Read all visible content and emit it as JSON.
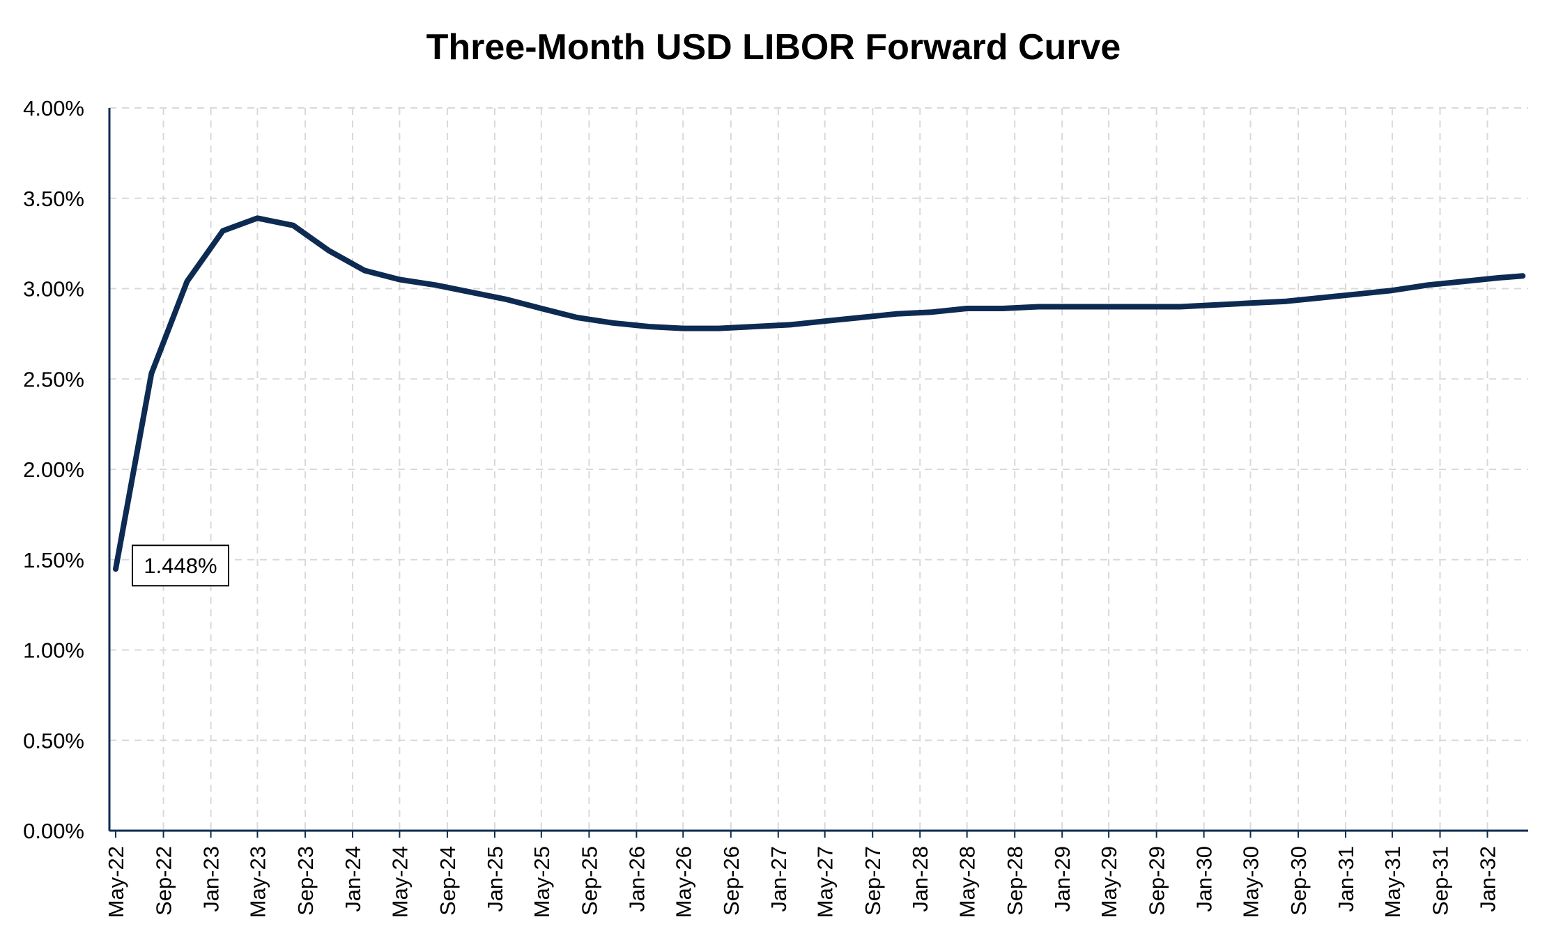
{
  "chart_data": {
    "type": "line",
    "title": "Three-Month USD LIBOR Forward Curve",
    "xlabel": "",
    "ylabel": "",
    "ylim": [
      0,
      0.04
    ],
    "y_tick_labels": [
      "0.00%",
      "0.50%",
      "1.00%",
      "1.50%",
      "2.00%",
      "2.50%",
      "3.00%",
      "3.50%",
      "4.00%"
    ],
    "x_tick_labels": [
      "May-22",
      "Sep-22",
      "Jan-23",
      "May-23",
      "Sep-23",
      "Jan-24",
      "May-24",
      "Sep-24",
      "Jan-25",
      "May-25",
      "Sep-25",
      "Jan-26",
      "May-26",
      "Sep-26",
      "Jan-27",
      "May-27",
      "Sep-27",
      "Jan-28",
      "May-28",
      "Sep-28",
      "Jan-29",
      "May-29",
      "Sep-29",
      "Jan-30",
      "May-30",
      "Sep-30",
      "Jan-31",
      "May-31",
      "Sep-31",
      "Jan-32"
    ],
    "grid": true,
    "series": [
      {
        "color": "#0d2b52",
        "points": [
          [
            "2022-05-01",
            0.01448
          ],
          [
            "2022-08-01",
            0.0253
          ],
          [
            "2022-11-01",
            0.0304
          ],
          [
            "2023-02-01",
            0.0332
          ],
          [
            "2023-05-01",
            0.0339
          ],
          [
            "2023-08-01",
            0.0335
          ],
          [
            "2023-11-01",
            0.0321
          ],
          [
            "2024-02-01",
            0.031
          ],
          [
            "2024-05-01",
            0.0305
          ],
          [
            "2024-08-01",
            0.0302
          ],
          [
            "2024-11-01",
            0.0298
          ],
          [
            "2025-02-01",
            0.0294
          ],
          [
            "2025-05-01",
            0.0289
          ],
          [
            "2025-08-01",
            0.0284
          ],
          [
            "2025-11-01",
            0.0281
          ],
          [
            "2026-02-01",
            0.0279
          ],
          [
            "2026-05-01",
            0.0278
          ],
          [
            "2026-08-01",
            0.0278
          ],
          [
            "2026-11-01",
            0.0279
          ],
          [
            "2027-02-01",
            0.028
          ],
          [
            "2027-05-01",
            0.0282
          ],
          [
            "2027-08-01",
            0.0284
          ],
          [
            "2027-11-01",
            0.0286
          ],
          [
            "2028-02-01",
            0.0287
          ],
          [
            "2028-05-01",
            0.0289
          ],
          [
            "2028-08-01",
            0.0289
          ],
          [
            "2028-11-01",
            0.029
          ],
          [
            "2029-02-01",
            0.029
          ],
          [
            "2029-05-01",
            0.029
          ],
          [
            "2029-08-01",
            0.029
          ],
          [
            "2029-11-01",
            0.029
          ],
          [
            "2030-02-01",
            0.0291
          ],
          [
            "2030-05-01",
            0.0292
          ],
          [
            "2030-08-01",
            0.0293
          ],
          [
            "2030-11-01",
            0.0295
          ],
          [
            "2031-02-01",
            0.0297
          ],
          [
            "2031-05-01",
            0.0299
          ],
          [
            "2031-08-01",
            0.0302
          ],
          [
            "2031-11-01",
            0.0304
          ],
          [
            "2032-02-01",
            0.0306
          ],
          [
            "2032-04-01",
            0.0307
          ]
        ]
      }
    ],
    "annotations": [
      {
        "text": "1.448%",
        "x": "2022-05-01",
        "y": 0.01448
      }
    ]
  }
}
